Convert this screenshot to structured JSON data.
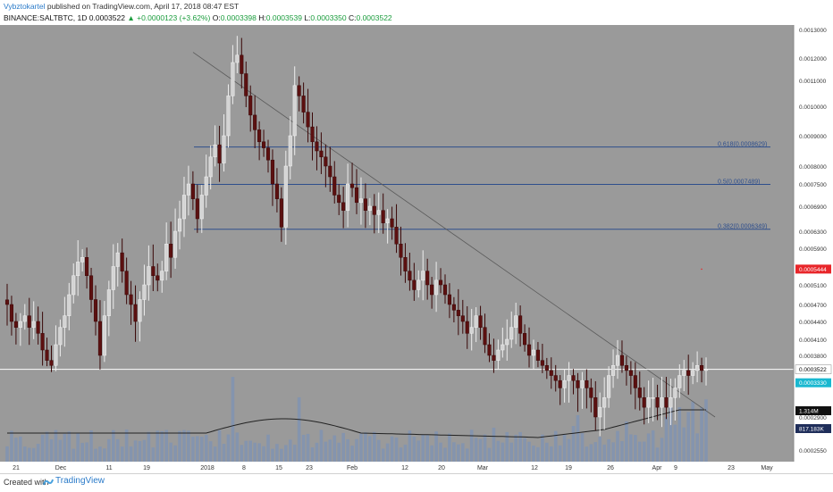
{
  "header": {
    "user": "Vybztokartel",
    "published": "published on TradingView.com, April 17, 2018 08:47 EST",
    "symbol": "BINANCE:SALTBTC, 1D",
    "last": "0.0003522",
    "change_arrow": "▲",
    "change": "+0.0000123 (+3.62%)",
    "o_label": "O:",
    "o": "0.0003398",
    "h_label": "H:",
    "h": "0.0003539",
    "l_label": "L:",
    "l": "0.0003350",
    "c_label": "C:",
    "c": "0.0003522"
  },
  "footer": {
    "created": "Created with",
    "brand": "TradingView"
  },
  "colors": {
    "background": "#9a9a9a",
    "up_candle": "#d4d4d4",
    "down_candle": "#5c1010",
    "volume": "#8294b0",
    "fib_line": "#2e4e8c",
    "trendline": "#5a5a5a",
    "ma_line": "#222222",
    "current_price": "#ffffff",
    "red_badge": "#e8262a",
    "cyan_badge": "#19b8d0"
  },
  "chart_data": {
    "type": "candlestick",
    "y_ticks": [
      "0.0013000",
      "0.0012000",
      "0.0011000",
      "0.0010000",
      "0.0009000",
      "0.0008000",
      "0.0007500",
      "0.0006900",
      "0.0006300",
      "0.0005900",
      "0.0005100",
      "0.0004700",
      "0.0004400",
      "0.0004100",
      "0.0003800",
      "0.0003250",
      "0.0002900",
      "0.0002550"
    ],
    "x_ticks": [
      "21",
      "Dec",
      "11",
      "19",
      "2018",
      "8",
      "15",
      "23",
      "Feb",
      "12",
      "20",
      "Mar",
      "12",
      "19",
      "26",
      "Apr",
      "9",
      "23",
      "May"
    ],
    "fib_levels": [
      {
        "label": "0.618(0.0008629)",
        "value": 0.0008629
      },
      {
        "label": "0.5(0.0007489)",
        "value": 0.0007489
      },
      {
        "label": "0.382(0.0006349)",
        "value": 0.0006349
      }
    ],
    "price_labels": [
      {
        "text": "0.0005444",
        "role": "red"
      },
      {
        "text": "0.0003522",
        "role": "current"
      },
      {
        "text": "0.0003330",
        "role": "cyan"
      },
      {
        "text": "1.314M",
        "role": "volume_last"
      },
      {
        "text": "817.183K",
        "role": "volume_ma"
      }
    ],
    "closes": [
      0.00047,
      0.00044,
      0.00043,
      0.00044,
      0.00045,
      0.00043,
      0.00044,
      0.00042,
      0.00039,
      0.00037,
      0.00036,
      0.0004,
      0.00043,
      0.00045,
      0.00049,
      0.00053,
      0.00056,
      0.00057,
      0.00053,
      0.00048,
      0.00044,
      0.00038,
      0.00045,
      0.0005,
      0.00055,
      0.00058,
      0.00054,
      0.00049,
      0.00047,
      0.00044,
      0.00048,
      0.00051,
      0.00055,
      0.00053,
      0.00052,
      0.00054,
      0.0006,
      0.00057,
      0.00063,
      0.00066,
      0.00072,
      0.00075,
      0.00071,
      0.00066,
      0.00072,
      0.00077,
      0.00083,
      0.00087,
      0.00081,
      0.0009,
      0.00104,
      0.00118,
      0.00121,
      0.00113,
      0.00104,
      0.00097,
      0.00092,
      0.00088,
      0.00086,
      0.00082,
      0.00075,
      0.00071,
      0.00064,
      0.0008,
      0.0009,
      0.00108,
      0.00104,
      0.00098,
      0.00093,
      0.00088,
      0.00085,
      0.00083,
      0.0008,
      0.00077,
      0.00072,
      0.0007,
      0.00068,
      0.00075,
      0.00074,
      0.0007,
      0.00071,
      0.00068,
      0.00069,
      0.00067,
      0.00068,
      0.00065,
      0.00066,
      0.00064,
      0.0006,
      0.00057,
      0.00054,
      0.00052,
      0.0005,
      0.00052,
      0.00054,
      0.00051,
      0.00049,
      0.00052,
      0.00051,
      0.00049,
      0.00047,
      0.00046,
      0.00045,
      0.00044,
      0.00042,
      0.00043,
      0.00045,
      0.00043,
      0.0004,
      0.00038,
      0.00037,
      0.00039,
      0.0004,
      0.00041,
      0.00043,
      0.00045,
      0.00042,
      0.0004,
      0.00038,
      0.00039,
      0.00037,
      0.00036,
      0.00035,
      0.00034,
      0.00033,
      0.00032,
      0.00033,
      0.00034,
      0.00033,
      0.00032,
      0.00033,
      0.00032,
      0.00031,
      0.00029,
      0.0003,
      0.00031,
      0.00034,
      0.00036,
      0.00038,
      0.00036,
      0.00035,
      0.00034,
      0.00032,
      0.00031,
      0.0003,
      0.00031,
      0.00031,
      0.0003,
      0.00031,
      0.0003,
      0.00031,
      0.00032,
      0.00034,
      0.00035,
      0.00034,
      0.00035,
      0.00036,
      0.00035,
      0.000352
    ]
  }
}
